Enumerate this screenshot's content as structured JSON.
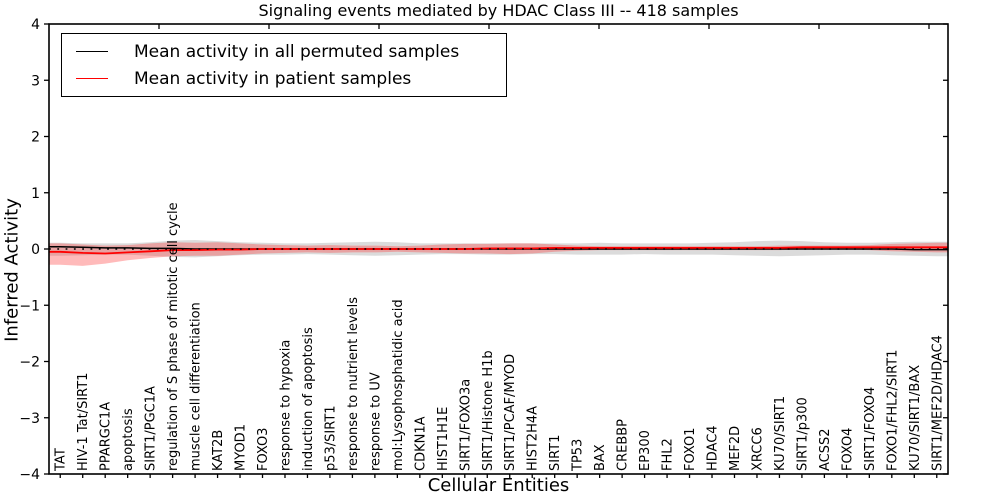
{
  "chart_data": {
    "type": "line",
    "title": "Signaling events mediated by HDAC Class III -- 418 samples",
    "xlabel": "Cellular Entities",
    "ylabel": "Inferred Activity",
    "ylim": [
      -4,
      4
    ],
    "yticks": [
      4,
      3,
      2,
      1,
      0,
      -1,
      -2,
      -3,
      -4
    ],
    "yticklabels": [
      "4",
      "3",
      "2",
      "1",
      "0",
      "−1",
      "−2",
      "−3",
      "−4"
    ],
    "grid": false,
    "legend_position": "upper-left",
    "zero_reference_line": true,
    "categories": [
      "TAT",
      "HIV-1 Tat/SIRT1",
      "PPARGC1A",
      "apoptosis",
      "SIRT1/PGC1A",
      "regulation of S phase of mitotic cell cycle",
      "muscle cell differentiation",
      "KAT2B",
      "MYOD1",
      "FOXO3",
      "response to hypoxia",
      "induction of apoptosis",
      "p53/SIRT1",
      "response to nutrient levels",
      "response to UV",
      "mol:Lysophosphatidic acid",
      "CDKN1A",
      "HIST1H1E",
      "SIRT1/FOXO3a",
      "SIRT1/Histone H1b",
      "SIRT1/PCAF/MYOD",
      "HIST2H4A",
      "SIRT1",
      "TP53",
      "BAX",
      "CREBBP",
      "EP300",
      "FHL2",
      "FOXO1",
      "HDAC4",
      "MEF2D",
      "XRCC6",
      "KU70/SIRT1",
      "SIRT1/p300",
      "ACSS2",
      "FOXO4",
      "SIRT1/FOXO4",
      "FOXO1/FHL2/SIRT1",
      "KU70/SIRT1/BAX",
      "SIRT1/MEF2D/HDAC4"
    ],
    "series": [
      {
        "name": "Mean activity in all permuted samples",
        "color": "#000000",
        "band_color": "rgba(125,125,125,0.28)",
        "values": [
          0.04,
          0.03,
          0.02,
          0.02,
          0.01,
          0.01,
          0,
          0,
          0,
          0,
          0,
          0,
          0,
          0,
          0,
          0,
          0,
          0,
          0,
          0,
          0,
          0,
          0,
          0,
          0,
          0,
          0,
          0,
          0,
          0,
          0,
          0,
          0,
          0,
          0,
          0,
          0,
          0,
          -0.01,
          -0.01
        ],
        "upper": [
          0.11,
          0.1,
          0.1,
          0.1,
          0.12,
          0.15,
          0.16,
          0.14,
          0.12,
          0.11,
          0.1,
          0.1,
          0.11,
          0.12,
          0.13,
          0.12,
          0.1,
          0.1,
          0.1,
          0.1,
          0.1,
          0.1,
          0.1,
          0.1,
          0.11,
          0.1,
          0.1,
          0.1,
          0.1,
          0.11,
          0.12,
          0.14,
          0.15,
          0.14,
          0.12,
          0.11,
          0.11,
          0.12,
          0.13,
          0.13
        ],
        "lower": [
          -0.12,
          -0.11,
          -0.1,
          -0.1,
          -0.12,
          -0.14,
          -0.15,
          -0.13,
          -0.11,
          -0.1,
          -0.1,
          -0.09,
          -0.1,
          -0.11,
          -0.12,
          -0.11,
          -0.1,
          -0.09,
          -0.09,
          -0.1,
          -0.1,
          -0.09,
          -0.09,
          -0.1,
          -0.1,
          -0.1,
          -0.09,
          -0.1,
          -0.1,
          -0.1,
          -0.11,
          -0.12,
          -0.13,
          -0.12,
          -0.11,
          -0.1,
          -0.1,
          -0.11,
          -0.12,
          -0.13
        ]
      },
      {
        "name": "Mean activity in patient samples",
        "color": "#ff0000",
        "band_color": "rgba(255,45,45,0.33)",
        "values": [
          -0.05,
          -0.07,
          -0.08,
          -0.06,
          -0.04,
          -0.02,
          -0.02,
          -0.01,
          -0.01,
          0,
          0,
          0,
          0,
          0,
          0,
          0,
          0,
          0,
          0,
          0.01,
          0.01,
          0.01,
          0.02,
          0.02,
          0.02,
          0.02,
          0.02,
          0.02,
          0.02,
          0.02,
          0.02,
          0.02,
          0.02,
          0.03,
          0.03,
          0.03,
          0.03,
          0.03,
          0.03,
          0.03
        ],
        "upper": [
          0.1,
          0.08,
          0.06,
          0.07,
          0.1,
          0.12,
          0.11,
          0.12,
          0.1,
          0.08,
          0.07,
          0.06,
          0.07,
          0.06,
          0.06,
          0.05,
          0.06,
          0.08,
          0.09,
          0.09,
          0.1,
          0.1,
          0.08,
          0.06,
          0.05,
          0.05,
          0.05,
          0.05,
          0.05,
          0.05,
          0.05,
          0.05,
          0.06,
          0.06,
          0.06,
          0.06,
          0.07,
          0.09,
          0.1,
          0.11
        ],
        "lower": [
          -0.28,
          -0.3,
          -0.26,
          -0.2,
          -0.16,
          -0.13,
          -0.12,
          -0.12,
          -0.1,
          -0.08,
          -0.07,
          -0.06,
          -0.07,
          -0.06,
          -0.06,
          -0.05,
          -0.06,
          -0.07,
          -0.08,
          -0.08,
          -0.09,
          -0.08,
          -0.05,
          -0.03,
          -0.02,
          -0.02,
          -0.02,
          -0.02,
          -0.02,
          -0.02,
          -0.02,
          -0.02,
          -0.02,
          -0.01,
          -0.01,
          -0.01,
          -0.02,
          -0.04,
          -0.05,
          -0.06
        ]
      }
    ]
  }
}
